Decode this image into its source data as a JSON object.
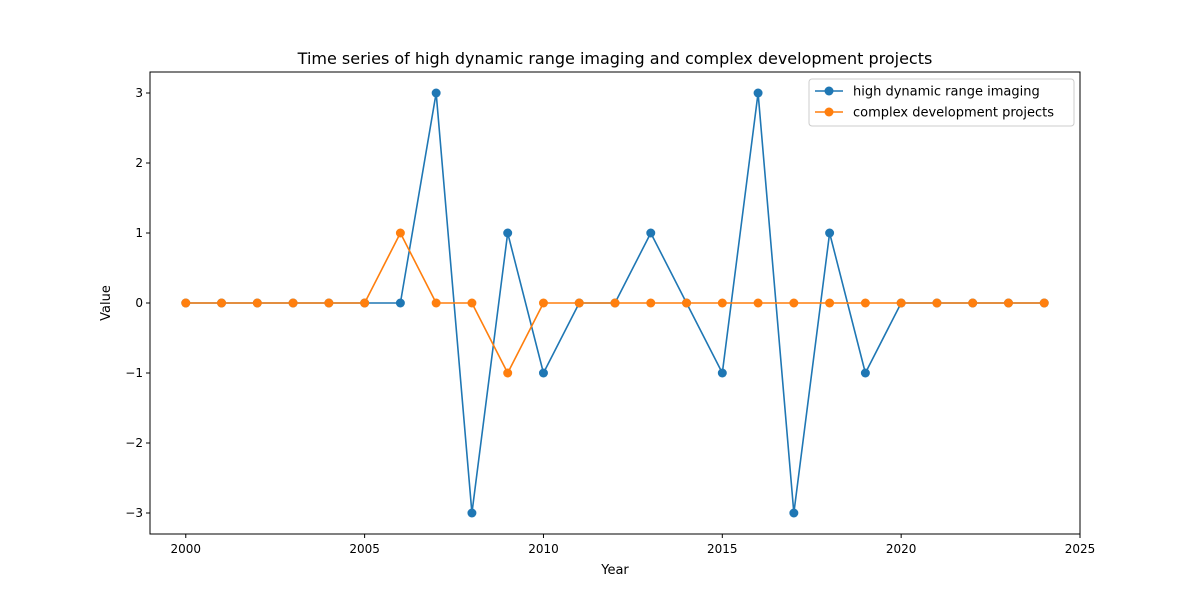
{
  "chart_data": {
    "type": "line",
    "title": "Time series of high dynamic range imaging and complex development projects",
    "xlabel": "Year",
    "ylabel": "Value",
    "xlim": [
      1999,
      2025
    ],
    "ylim": [
      -3.3,
      3.3
    ],
    "xticks": [
      2000,
      2005,
      2010,
      2015,
      2020,
      2025
    ],
    "yticks": [
      -3,
      -2,
      -1,
      0,
      1,
      2,
      3
    ],
    "xtick_labels": [
      "2000",
      "2005",
      "2010",
      "2015",
      "2020",
      "2025"
    ],
    "ytick_labels": [
      "−3",
      "−2",
      "−1",
      "0",
      "1",
      "2",
      "3"
    ],
    "grid": false,
    "legend_position": "top-right",
    "x": [
      2000,
      2001,
      2002,
      2003,
      2004,
      2005,
      2006,
      2007,
      2008,
      2009,
      2010,
      2011,
      2012,
      2013,
      2014,
      2015,
      2016,
      2017,
      2018,
      2019,
      2020,
      2021,
      2022,
      2023,
      2024
    ],
    "series": [
      {
        "name": "high dynamic range imaging",
        "color": "#1f77b4",
        "values": [
          0,
          0,
          0,
          0,
          0,
          0,
          0,
          3,
          -3,
          1,
          -1,
          0,
          0,
          1,
          0,
          -1,
          3,
          -3,
          1,
          -1,
          0,
          0,
          0,
          0,
          0
        ]
      },
      {
        "name": "complex development projects",
        "color": "#ff7f0e",
        "values": [
          0,
          0,
          0,
          0,
          0,
          0,
          1,
          0,
          0,
          -1,
          0,
          0,
          0,
          0,
          0,
          0,
          0,
          0,
          0,
          0,
          0,
          0,
          0,
          0,
          0
        ]
      }
    ]
  }
}
